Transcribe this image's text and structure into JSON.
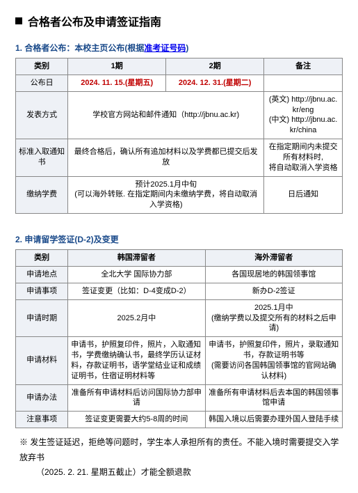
{
  "header": {
    "title": "合格者公布及申请签证指南"
  },
  "section1": {
    "label_prefix": "1. 合格者公布：本校主页公布(根据",
    "label_link": "准考证号码",
    "label_suffix": ")",
    "table": {
      "headers": [
        "类别",
        "1期",
        "2期",
        "备注"
      ],
      "rows": {
        "r0": {
          "head": "公布日",
          "c1": "2024. 11. 15.(星期五)",
          "c2": "2024. 12. 31.(星期二)",
          "c3": ""
        },
        "r1": {
          "head": "发表方式",
          "c12": "学校官方网站和邮件通知（http://jbnu.ac.kr)",
          "c3": "(英文) http://jbnu.ac.kr/eng\n(中文) http://jbnu.ac.kr/china"
        },
        "r2": {
          "head": "标准入取通知书",
          "c12": "最终合格后，确认所有追加材料以及学费都已提交后发放",
          "c3": "在指定期间内未提交所有材料时,\n将自动取消入学资格"
        },
        "r3": {
          "head": "缴纳学费",
          "c12_line1": "预计2025.1月中旬",
          "c12_line2": "(可以海外转账. 在指定期间内未缴纳学费，将自动取消入学资格)",
          "c3": "日后通知"
        }
      }
    }
  },
  "section2": {
    "label": "2. 申请留学签证(D-2)及变更",
    "table": {
      "headers": [
        "类别",
        "韩国滞留者",
        "海外滞留者"
      ],
      "rows": {
        "r0": {
          "head": "申请地点",
          "c1": "全北大学 国际协力部",
          "c2": "各国现居地的韩国领事馆"
        },
        "r1": {
          "head": "申请事项",
          "c1": "签证变更（比如：D-4变成D-2）",
          "c2": "新办D-2签证"
        },
        "r2": {
          "head": "申请时期",
          "c1": "2025.2月中",
          "c2": "2025.1月中\n(缴纳学费以及提交所有的材料之后申请)"
        },
        "r3": {
          "head": "申请材料",
          "c1": "申请书，护照复印件，照片，入取通知书，学费缴纳确认书，最终学历认证材料，存款证明书，语学堂结业证和成绩证明书，住宿证明材料等",
          "c2": "申请书，护照复印件，照片，录取通知书，存款证明书等\n(需要访问各国韩国领事馆的官网站确认材料)"
        },
        "r4": {
          "head": "申请办法",
          "c1": "准备所有申请材料后访问国际协力部申请",
          "c2": "准备所有申请材料后去本国的韩国领事馆申请"
        },
        "r5": {
          "head": "注意事项",
          "c1": "签证变更需要大约5-8周的时间",
          "c2": "韩国入境以后需要办理外国人登陆手续"
        }
      }
    }
  },
  "footnote": {
    "line1": "※ 发生签证延迟，拒绝等问题时，学生本人承担所有的责任。不能入境时需要提交入学放弃书",
    "line2": "（2025. 2. 21. 星期五截止）才能全额退款"
  },
  "layout": {
    "t1_cols": [
      "16%",
      "30%",
      "30%",
      "24%"
    ],
    "t2_cols": [
      "16%",
      "42%",
      "42%"
    ]
  }
}
